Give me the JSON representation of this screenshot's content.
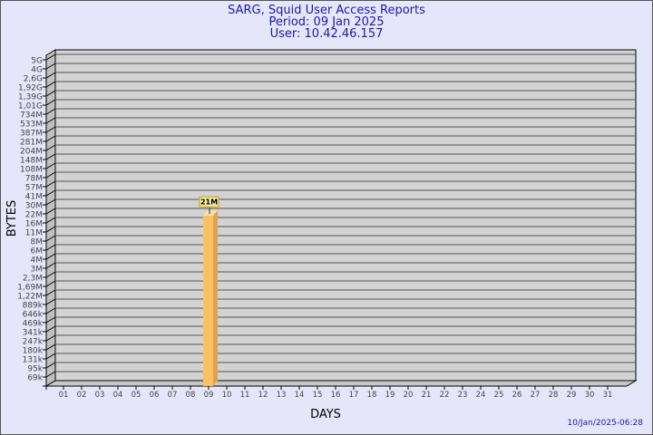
{
  "header": {
    "title": "SARG, Squid User Access Reports",
    "period": "Period: 09 Jan 2025",
    "user": "User: 10.42.46.157"
  },
  "footer": {
    "timestamp": "10/Jan/2025-06:28"
  },
  "chart_data": {
    "type": "bar",
    "xlabel": "DAYS",
    "ylabel": "BYTES",
    "yscale": "log",
    "ylim": [
      69000,
      5000000000
    ],
    "ytick_labels": [
      "5G",
      "4G",
      "2,6G",
      "1,92G",
      "1,39G",
      "1,01G",
      "734M",
      "533M",
      "387M",
      "281M",
      "204M",
      "148M",
      "108M",
      "78M",
      "57M",
      "41M",
      "30M",
      "22M",
      "16M",
      "11M",
      "8M",
      "6M",
      "4M",
      "3M",
      "2,3M",
      "1,69M",
      "1,22M",
      "889k",
      "646k",
      "469k",
      "341k",
      "247k",
      "180k",
      "131k",
      "95k",
      "69k"
    ],
    "categories": [
      "01",
      "02",
      "03",
      "04",
      "05",
      "06",
      "07",
      "08",
      "09",
      "10",
      "11",
      "12",
      "13",
      "14",
      "15",
      "16",
      "17",
      "18",
      "19",
      "20",
      "21",
      "22",
      "23",
      "24",
      "25",
      "26",
      "27",
      "28",
      "29",
      "30",
      "31"
    ],
    "bars": [
      {
        "category": "09",
        "value": 21000000,
        "label": "21M"
      }
    ],
    "grid": true,
    "colors": {
      "bar": "#fbc062",
      "bar_side": "#e0a24e",
      "bar_top": "#fde0a0",
      "panel": "#d3d3d3",
      "grid": "#555555",
      "text": "#1a1aa8",
      "label_bg": "#f5efa8"
    }
  }
}
